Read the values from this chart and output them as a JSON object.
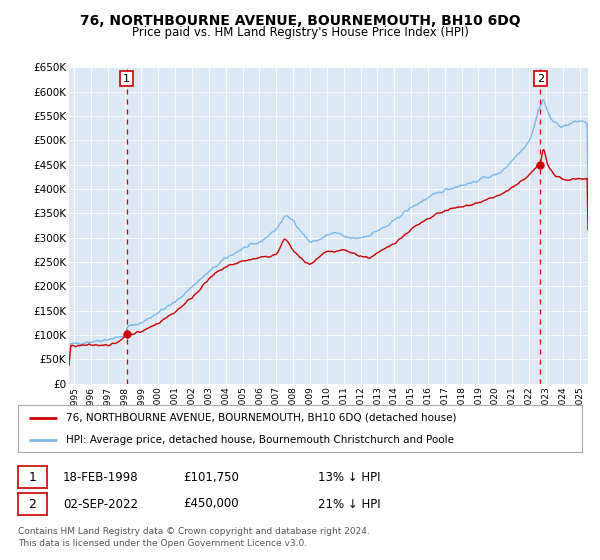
{
  "title": "76, NORTHBOURNE AVENUE, BOURNEMOUTH, BH10 6DQ",
  "subtitle": "Price paid vs. HM Land Registry's House Price Index (HPI)",
  "background_color": "#ffffff",
  "plot_bg_color": "#dce9f5",
  "ylim": [
    0,
    650000
  ],
  "yticks": [
    0,
    50000,
    100000,
    150000,
    200000,
    250000,
    300000,
    350000,
    400000,
    450000,
    500000,
    550000,
    600000,
    650000
  ],
  "ytick_labels": [
    "£0",
    "£50K",
    "£100K",
    "£150K",
    "£200K",
    "£250K",
    "£300K",
    "£350K",
    "£400K",
    "£450K",
    "£500K",
    "£550K",
    "£600K",
    "£650K"
  ],
  "xlim_start": 1994.7,
  "xlim_end": 2025.5,
  "hpi_color": "#7ab8e8",
  "price_color": "#cc0000",
  "vline_color": "#cc0000",
  "marker_color": "#cc0000",
  "sale1_year": 1998.12,
  "sale1_price": 101750,
  "sale1_label": "1",
  "sale2_year": 2022.67,
  "sale2_price": 450000,
  "sale2_label": "2",
  "legend_line1": "76, NORTHBOURNE AVENUE, BOURNEMOUTH, BH10 6DQ (detached house)",
  "legend_line2": "HPI: Average price, detached house, Bournemouth Christchurch and Poole",
  "annotation1_date": "18-FEB-1998",
  "annotation1_price": "£101,750",
  "annotation1_hpi": "13% ↓ HPI",
  "annotation2_date": "02-SEP-2022",
  "annotation2_price": "£450,000",
  "annotation2_hpi": "21% ↓ HPI",
  "footer": "Contains HM Land Registry data © Crown copyright and database right 2024.\nThis data is licensed under the Open Government Licence v3.0.",
  "xtick_years": [
    1995,
    1996,
    1997,
    1998,
    1999,
    2000,
    2001,
    2002,
    2003,
    2004,
    2005,
    2006,
    2007,
    2008,
    2009,
    2010,
    2011,
    2012,
    2013,
    2014,
    2015,
    2016,
    2017,
    2018,
    2019,
    2020,
    2021,
    2022,
    2023,
    2024,
    2025
  ]
}
